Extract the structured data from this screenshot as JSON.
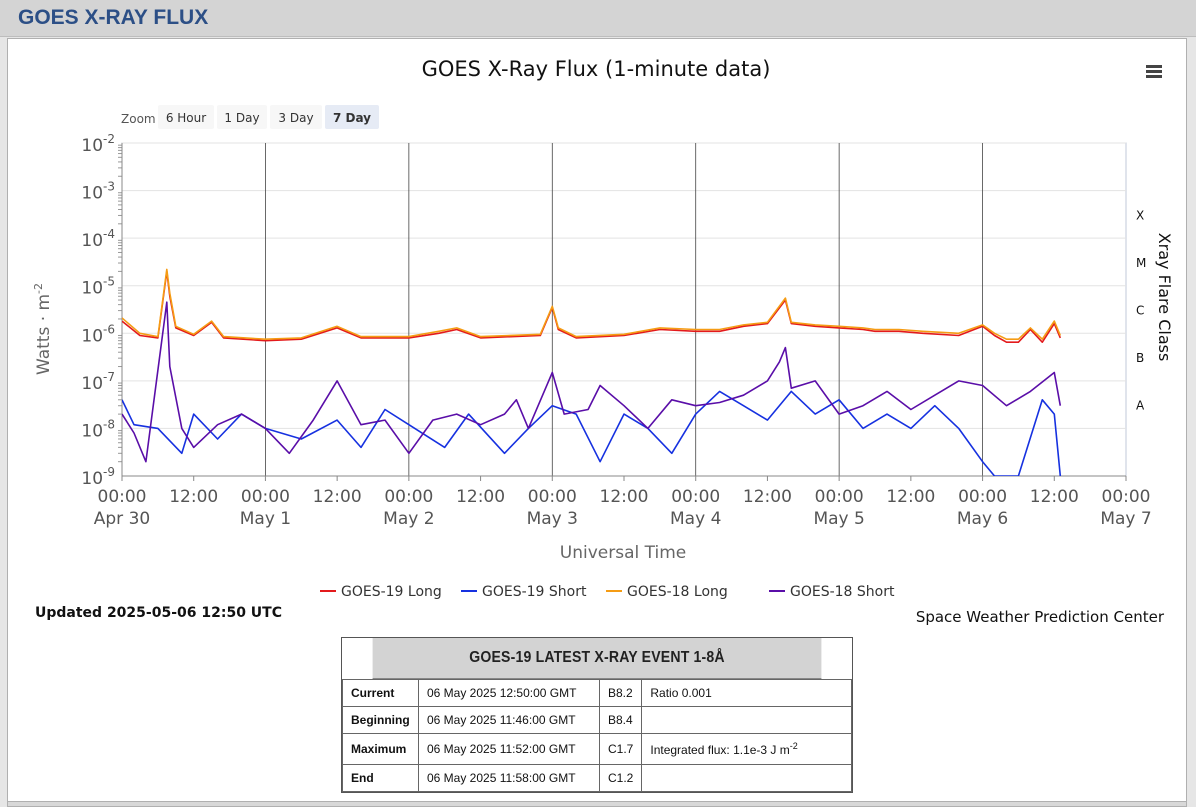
{
  "page": {
    "heading": "GOES X-RAY FLUX"
  },
  "chart_data": {
    "type": "line",
    "title": "GOES X-Ray Flux (1-minute data)",
    "xlabel": "Universal Time",
    "ylabel": "Watts · m",
    "ylabel_superscript": "-2",
    "y_scale": "log",
    "ylim": [
      1e-09,
      0.01
    ],
    "x_unit": "hours since 2025-04-30 00:00 UTC",
    "xlim": [
      0,
      168
    ],
    "y_ticks": [
      {
        "base": "10",
        "exp": "-2",
        "value": 0.01
      },
      {
        "base": "10",
        "exp": "-3",
        "value": 0.001
      },
      {
        "base": "10",
        "exp": "-4",
        "value": 0.0001
      },
      {
        "base": "10",
        "exp": "-5",
        "value": 1e-05
      },
      {
        "base": "10",
        "exp": "-6",
        "value": 1e-06
      },
      {
        "base": "10",
        "exp": "-7",
        "value": 1e-07
      },
      {
        "base": "10",
        "exp": "-8",
        "value": 1e-08
      },
      {
        "base": "10",
        "exp": "-9",
        "value": 1e-09
      }
    ],
    "x_ticks": [
      {
        "hour": 0,
        "time": "00:00",
        "date": "Apr 30"
      },
      {
        "hour": 12,
        "time": "12:00",
        "date": ""
      },
      {
        "hour": 24,
        "time": "00:00",
        "date": "May 1"
      },
      {
        "hour": 36,
        "time": "12:00",
        "date": ""
      },
      {
        "hour": 48,
        "time": "00:00",
        "date": "May 2"
      },
      {
        "hour": 60,
        "time": "12:00",
        "date": ""
      },
      {
        "hour": 72,
        "time": "00:00",
        "date": "May 3"
      },
      {
        "hour": 84,
        "time": "12:00",
        "date": ""
      },
      {
        "hour": 96,
        "time": "00:00",
        "date": "May 4"
      },
      {
        "hour": 108,
        "time": "12:00",
        "date": ""
      },
      {
        "hour": 120,
        "time": "00:00",
        "date": "May 5"
      },
      {
        "hour": 132,
        "time": "12:00",
        "date": ""
      },
      {
        "hour": 144,
        "time": "00:00",
        "date": "May 6"
      },
      {
        "hour": 156,
        "time": "12:00",
        "date": ""
      },
      {
        "hour": 168,
        "time": "00:00",
        "date": "May 7"
      }
    ],
    "flare_class_axis": {
      "title": "Xray Flare Class",
      "classes": [
        {
          "label": "X",
          "value": 0.0003
        },
        {
          "label": "M",
          "value": 3e-05
        },
        {
          "label": "C",
          "value": 3e-06
        },
        {
          "label": "B",
          "value": 3e-07
        },
        {
          "label": "A",
          "value": 3e-08
        }
      ]
    },
    "legend_position": "bottom-center",
    "grid": true,
    "series": [
      {
        "name": "GOES-19 Long",
        "color": "#e31a1c",
        "points": [
          [
            0,
            1.8e-06
          ],
          [
            3,
            9e-07
          ],
          [
            6,
            8e-07
          ],
          [
            7.5,
            2e-05
          ],
          [
            8,
            6e-06
          ],
          [
            9,
            1.3e-06
          ],
          [
            12,
            9e-07
          ],
          [
            15,
            1.7e-06
          ],
          [
            17,
            8e-07
          ],
          [
            24,
            7e-07
          ],
          [
            30,
            7.5e-07
          ],
          [
            36,
            1.3e-06
          ],
          [
            40,
            8e-07
          ],
          [
            48,
            8e-07
          ],
          [
            53,
            1e-06
          ],
          [
            56,
            1.2e-06
          ],
          [
            60,
            8e-07
          ],
          [
            70,
            9e-07
          ],
          [
            72,
            3.5e-06
          ],
          [
            73,
            1.2e-06
          ],
          [
            76,
            8e-07
          ],
          [
            84,
            9e-07
          ],
          [
            90,
            1.2e-06
          ],
          [
            96,
            1.1e-06
          ],
          [
            100,
            1.1e-06
          ],
          [
            104,
            1.4e-06
          ],
          [
            108,
            1.6e-06
          ],
          [
            111,
            5e-06
          ],
          [
            112,
            1.6e-06
          ],
          [
            116,
            1.4e-06
          ],
          [
            120,
            1.3e-06
          ],
          [
            124,
            1.2e-06
          ],
          [
            126,
            1.1e-06
          ],
          [
            130,
            1.1e-06
          ],
          [
            134,
            1e-06
          ],
          [
            140,
            9e-07
          ],
          [
            144,
            1.4e-06
          ],
          [
            146,
            9e-07
          ],
          [
            148,
            6.5e-07
          ],
          [
            150,
            6.5e-07
          ],
          [
            152,
            1.2e-06
          ],
          [
            154,
            6.5e-07
          ],
          [
            156,
            1.6e-06
          ],
          [
            157,
            8e-07
          ]
        ]
      },
      {
        "name": "GOES-19 Short",
        "color": "#1631e0",
        "points": [
          [
            0,
            4e-08
          ],
          [
            2,
            1.2e-08
          ],
          [
            6,
            1e-08
          ],
          [
            10,
            3e-09
          ],
          [
            12,
            2e-08
          ],
          [
            16,
            6e-09
          ],
          [
            20,
            2e-08
          ],
          [
            24,
            1e-08
          ],
          [
            30,
            6e-09
          ],
          [
            36,
            1.5e-08
          ],
          [
            40,
            4e-09
          ],
          [
            44,
            2.5e-08
          ],
          [
            48,
            1.2e-08
          ],
          [
            54,
            4e-09
          ],
          [
            58,
            2e-08
          ],
          [
            64,
            3e-09
          ],
          [
            68,
            1e-08
          ],
          [
            72,
            3e-08
          ],
          [
            76,
            2e-08
          ],
          [
            80,
            2e-09
          ],
          [
            84,
            2e-08
          ],
          [
            88,
            1e-08
          ],
          [
            92,
            3e-09
          ],
          [
            96,
            2e-08
          ],
          [
            100,
            6e-08
          ],
          [
            104,
            3e-08
          ],
          [
            108,
            1.5e-08
          ],
          [
            112,
            6e-08
          ],
          [
            116,
            2e-08
          ],
          [
            120,
            4e-08
          ],
          [
            124,
            1e-08
          ],
          [
            128,
            2e-08
          ],
          [
            132,
            1e-08
          ],
          [
            136,
            3e-08
          ],
          [
            140,
            1e-08
          ],
          [
            144,
            2e-09
          ],
          [
            146,
            1e-09
          ],
          [
            150,
            1e-09
          ],
          [
            154,
            4e-08
          ],
          [
            156,
            2e-08
          ],
          [
            157,
            1e-09
          ]
        ]
      },
      {
        "name": "GOES-18 Long",
        "color": "#f59c14",
        "points": [
          [
            0,
            2.1e-06
          ],
          [
            3,
            1e-06
          ],
          [
            6,
            8.5e-07
          ],
          [
            7.5,
            2.2e-05
          ],
          [
            8,
            7e-06
          ],
          [
            9,
            1.4e-06
          ],
          [
            12,
            9.5e-07
          ],
          [
            15,
            1.8e-06
          ],
          [
            17,
            8.5e-07
          ],
          [
            24,
            7.5e-07
          ],
          [
            30,
            8e-07
          ],
          [
            36,
            1.4e-06
          ],
          [
            40,
            8.5e-07
          ],
          [
            48,
            8.5e-07
          ],
          [
            53,
            1.1e-06
          ],
          [
            56,
            1.3e-06
          ],
          [
            60,
            8.5e-07
          ],
          [
            70,
            9.5e-07
          ],
          [
            72,
            3.7e-06
          ],
          [
            73,
            1.3e-06
          ],
          [
            76,
            8.5e-07
          ],
          [
            84,
            9.5e-07
          ],
          [
            90,
            1.3e-06
          ],
          [
            96,
            1.2e-06
          ],
          [
            100,
            1.2e-06
          ],
          [
            104,
            1.5e-06
          ],
          [
            108,
            1.7e-06
          ],
          [
            111,
            5.5e-06
          ],
          [
            112,
            1.7e-06
          ],
          [
            116,
            1.5e-06
          ],
          [
            120,
            1.4e-06
          ],
          [
            124,
            1.3e-06
          ],
          [
            126,
            1.2e-06
          ],
          [
            130,
            1.2e-06
          ],
          [
            134,
            1.1e-06
          ],
          [
            140,
            1e-06
          ],
          [
            144,
            1.5e-06
          ],
          [
            146,
            1e-06
          ],
          [
            148,
            7.5e-07
          ],
          [
            150,
            7.5e-07
          ],
          [
            152,
            1.3e-06
          ],
          [
            154,
            7.5e-07
          ],
          [
            156,
            1.8e-06
          ],
          [
            157,
            9e-07
          ]
        ]
      },
      {
        "name": "GOES-18 Short",
        "color": "#5a0ea8",
        "points": [
          [
            0,
            2e-08
          ],
          [
            2,
            8e-09
          ],
          [
            4,
            2e-09
          ],
          [
            7.5,
            4.5e-06
          ],
          [
            8,
            2e-07
          ],
          [
            10,
            1e-08
          ],
          [
            12,
            4e-09
          ],
          [
            16,
            1.2e-08
          ],
          [
            20,
            2e-08
          ],
          [
            24,
            1e-08
          ],
          [
            28,
            3e-09
          ],
          [
            32,
            1.5e-08
          ],
          [
            36,
            1e-07
          ],
          [
            40,
            1.2e-08
          ],
          [
            44,
            1.5e-08
          ],
          [
            48,
            3e-09
          ],
          [
            52,
            1.5e-08
          ],
          [
            56,
            2e-08
          ],
          [
            60,
            1.2e-08
          ],
          [
            64,
            2e-08
          ],
          [
            66,
            4e-08
          ],
          [
            68,
            1e-08
          ],
          [
            72,
            1.5e-07
          ],
          [
            74,
            2e-08
          ],
          [
            78,
            2.5e-08
          ],
          [
            80,
            8e-08
          ],
          [
            84,
            3e-08
          ],
          [
            88,
            1e-08
          ],
          [
            92,
            4e-08
          ],
          [
            96,
            3e-08
          ],
          [
            100,
            3.5e-08
          ],
          [
            104,
            5e-08
          ],
          [
            108,
            1e-07
          ],
          [
            110,
            2.5e-07
          ],
          [
            111,
            5e-07
          ],
          [
            112,
            7e-08
          ],
          [
            116,
            1e-07
          ],
          [
            120,
            2e-08
          ],
          [
            124,
            3e-08
          ],
          [
            128,
            6e-08
          ],
          [
            132,
            2.5e-08
          ],
          [
            136,
            5e-08
          ],
          [
            140,
            1e-07
          ],
          [
            144,
            8e-08
          ],
          [
            148,
            3e-08
          ],
          [
            152,
            6e-08
          ],
          [
            156,
            1.5e-07
          ],
          [
            157,
            3e-08
          ]
        ]
      }
    ]
  },
  "zoom": {
    "label": "Zoom",
    "buttons": [
      "6 Hour",
      "1 Day",
      "3 Day",
      "7 Day"
    ],
    "selected": "7 Day"
  },
  "updated": "Updated 2025-05-06 12:50 UTC",
  "credit": "Space Weather Prediction Center",
  "event": {
    "title": "GOES-19 LATEST X-RAY EVENT 1-8Å",
    "rows": [
      {
        "label": "Current",
        "time": "06 May 2025 12:50:00 GMT",
        "class": "B8.2",
        "note": "Ratio 0.001",
        "note_sup": ""
      },
      {
        "label": "Beginning",
        "time": "06 May 2025 11:46:00 GMT",
        "class": "B8.4",
        "note": "",
        "note_sup": ""
      },
      {
        "label": "Maximum",
        "time": "06 May 2025 11:52:00 GMT",
        "class": "C1.7",
        "note": "Integrated flux: 1.1e-3 J m",
        "note_sup": "-2"
      },
      {
        "label": "End",
        "time": "06 May 2025 11:58:00 GMT",
        "class": "C1.2",
        "note": "",
        "note_sup": ""
      }
    ]
  }
}
